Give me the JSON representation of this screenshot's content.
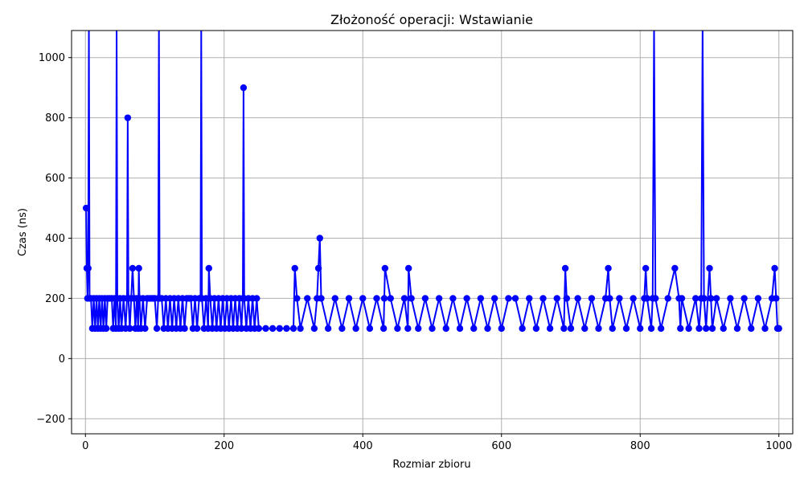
{
  "chart_data": {
    "type": "line",
    "title": "Złożoność operacji: Wstawianie",
    "xlabel": "Rozmiar zbioru",
    "ylabel": "Czas (ns)",
    "xlim": [
      -20,
      1020
    ],
    "ylim": [
      -250,
      1090
    ],
    "xticks": [
      0,
      200,
      400,
      600,
      800,
      1000
    ],
    "xtick_labels": [
      "0",
      "200",
      "400",
      "600",
      "800",
      "1000"
    ],
    "yticks": [
      -200,
      0,
      200,
      400,
      600,
      800,
      1000
    ],
    "ytick_labels": [
      "−200",
      "0",
      "200",
      "400",
      "600",
      "800",
      "1000"
    ],
    "grid": true,
    "colors": {
      "series": "#0000ff",
      "grid": "#b0b0b0"
    },
    "series": [
      {
        "marker": "circle",
        "x": [
          1,
          2,
          3,
          4,
          5,
          6,
          8,
          10,
          12,
          14,
          16,
          18,
          20,
          22,
          24,
          26,
          28,
          30,
          32,
          35,
          38,
          40,
          42,
          44,
          45,
          46,
          48,
          50,
          52,
          55,
          58,
          60,
          61,
          62,
          64,
          66,
          68,
          70,
          72,
          74,
          76,
          77,
          78,
          80,
          83,
          86,
          89,
          92,
          95,
          98,
          100,
          103,
          105,
          106,
          107,
          110,
          113,
          116,
          119,
          122,
          125,
          128,
          131,
          134,
          137,
          140,
          143,
          146,
          149,
          152,
          155,
          158,
          161,
          164,
          166,
          167,
          168,
          171,
          174,
          177,
          178,
          180,
          183,
          186,
          189,
          192,
          195,
          198,
          201,
          204,
          207,
          210,
          213,
          216,
          219,
          222,
          225,
          227,
          228,
          229,
          232,
          235,
          238,
          241,
          244,
          247,
          250,
          260,
          270,
          280,
          290,
          300,
          302,
          305,
          310,
          320,
          330,
          334,
          336,
          338,
          340,
          350,
          360,
          370,
          380,
          390,
          400,
          410,
          420,
          430,
          431,
          432,
          440,
          450,
          460,
          465,
          466,
          470,
          480,
          490,
          500,
          510,
          520,
          530,
          540,
          550,
          560,
          570,
          580,
          590,
          600,
          610,
          620,
          630,
          640,
          650,
          660,
          670,
          680,
          690,
          692,
          694,
          700,
          710,
          720,
          730,
          740,
          750,
          754,
          756,
          760,
          770,
          780,
          790,
          800,
          806,
          808,
          810,
          816,
          818,
          820,
          822,
          830,
          840,
          850,
          856,
          858,
          860,
          870,
          880,
          885,
          888,
          890,
          892,
          895,
          900,
          902,
          904,
          910,
          920,
          930,
          940,
          950,
          960,
          970,
          980,
          990,
          994,
          996,
          998,
          1000
        ],
        "y": [
          500,
          300,
          200,
          300,
          1100,
          200,
          200,
          100,
          200,
          100,
          200,
          100,
          200,
          100,
          200,
          100,
          200,
          100,
          200,
          200,
          200,
          100,
          200,
          100,
          1100,
          200,
          100,
          200,
          100,
          200,
          100,
          200,
          800,
          200,
          100,
          200,
          300,
          200,
          100,
          200,
          100,
          300,
          200,
          100,
          200,
          100,
          200,
          200,
          200,
          200,
          200,
          100,
          200,
          1100,
          200,
          200,
          100,
          200,
          100,
          200,
          100,
          200,
          100,
          200,
          100,
          200,
          100,
          200,
          200,
          200,
          100,
          200,
          100,
          200,
          200,
          1100,
          200,
          100,
          200,
          100,
          300,
          200,
          100,
          200,
          100,
          200,
          100,
          200,
          100,
          200,
          100,
          200,
          100,
          200,
          100,
          200,
          100,
          200,
          900,
          200,
          100,
          200,
          100,
          200,
          100,
          200,
          100,
          100,
          100,
          100,
          100,
          100,
          300,
          200,
          100,
          200,
          100,
          200,
          300,
          400,
          200,
          100,
          200,
          100,
          200,
          100,
          200,
          100,
          200,
          100,
          200,
          300,
          200,
          100,
          200,
          100,
          300,
          200,
          100,
          200,
          100,
          200,
          100,
          200,
          100,
          200,
          100,
          200,
          100,
          200,
          100,
          200,
          200,
          100,
          200,
          100,
          200,
          100,
          200,
          100,
          300,
          200,
          100,
          200,
          100,
          200,
          100,
          200,
          300,
          200,
          100,
          200,
          100,
          200,
          100,
          200,
          300,
          200,
          100,
          200,
          1100,
          200,
          100,
          200,
          300,
          200,
          100,
          200,
          100,
          200,
          100,
          200,
          1100,
          200,
          100,
          300,
          200,
          100,
          200,
          100,
          200,
          100,
          200,
          100,
          200,
          100,
          200,
          300,
          200,
          100,
          100
        ]
      }
    ]
  }
}
